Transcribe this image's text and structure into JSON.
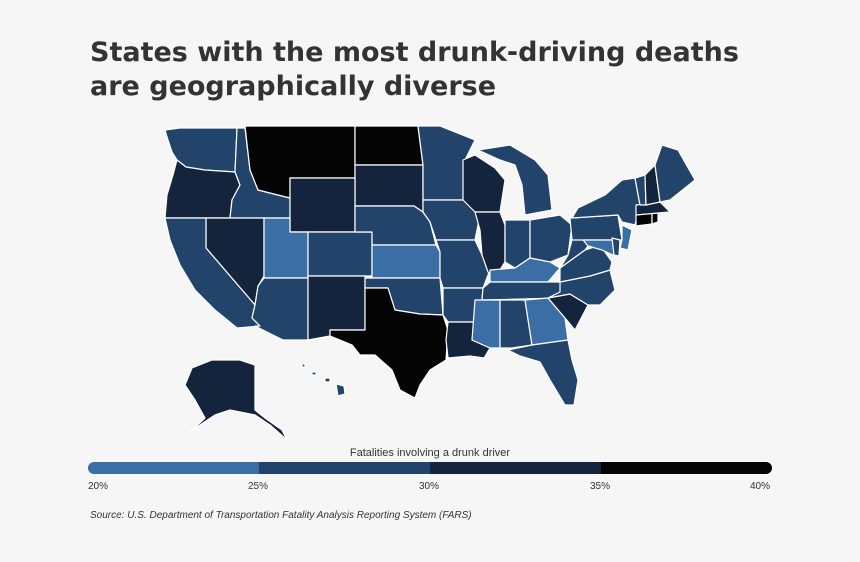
{
  "title": "States with the most drunk-driving deaths are geographically diverse",
  "legend": {
    "title": "Fatalities involving a drunk driver",
    "ticks": [
      "20%",
      "25%",
      "30%",
      "35%",
      "40%"
    ],
    "colors": [
      "#3a6ea5",
      "#22446b",
      "#14243d",
      "#050505"
    ]
  },
  "source": "Source: U.S. Department of Transportation Fatality Analysis Reporting System (FARS)",
  "state_colors": {
    "bin1": "#3a6ea5",
    "bin2": "#22446b",
    "bin3": "#14243d",
    "bin4": "#050505"
  },
  "state_bins": {
    "WA": 2,
    "OR": 3,
    "ID": 2,
    "MT": 4,
    "ND": 4,
    "SD": 3,
    "WY": 3,
    "NV": 3,
    "CA": 2,
    "UT": 1,
    "CO": 2,
    "AZ": 2,
    "NM": 3,
    "NE": 2,
    "KS": 1,
    "OK": 2,
    "TX": 4,
    "MN": 2,
    "IA": 2,
    "MO": 2,
    "AR": 2,
    "LA": 3,
    "WI": 3,
    "IL": 3,
    "MI": 2,
    "IN": 2,
    "OH": 2,
    "KY": 1,
    "TN": 2,
    "MS": 1,
    "AL": 2,
    "GA": 1,
    "FL": 2,
    "SC": 3,
    "NC": 2,
    "VA": 2,
    "WV": 2,
    "PA": 2,
    "NY": 2,
    "VT": 2,
    "NH": 3,
    "ME": 2,
    "MA": 3,
    "CT": 4,
    "RI": 4,
    "NJ": 1,
    "DE": 2,
    "MD": 1,
    "AK": 3,
    "HI": 2
  }
}
